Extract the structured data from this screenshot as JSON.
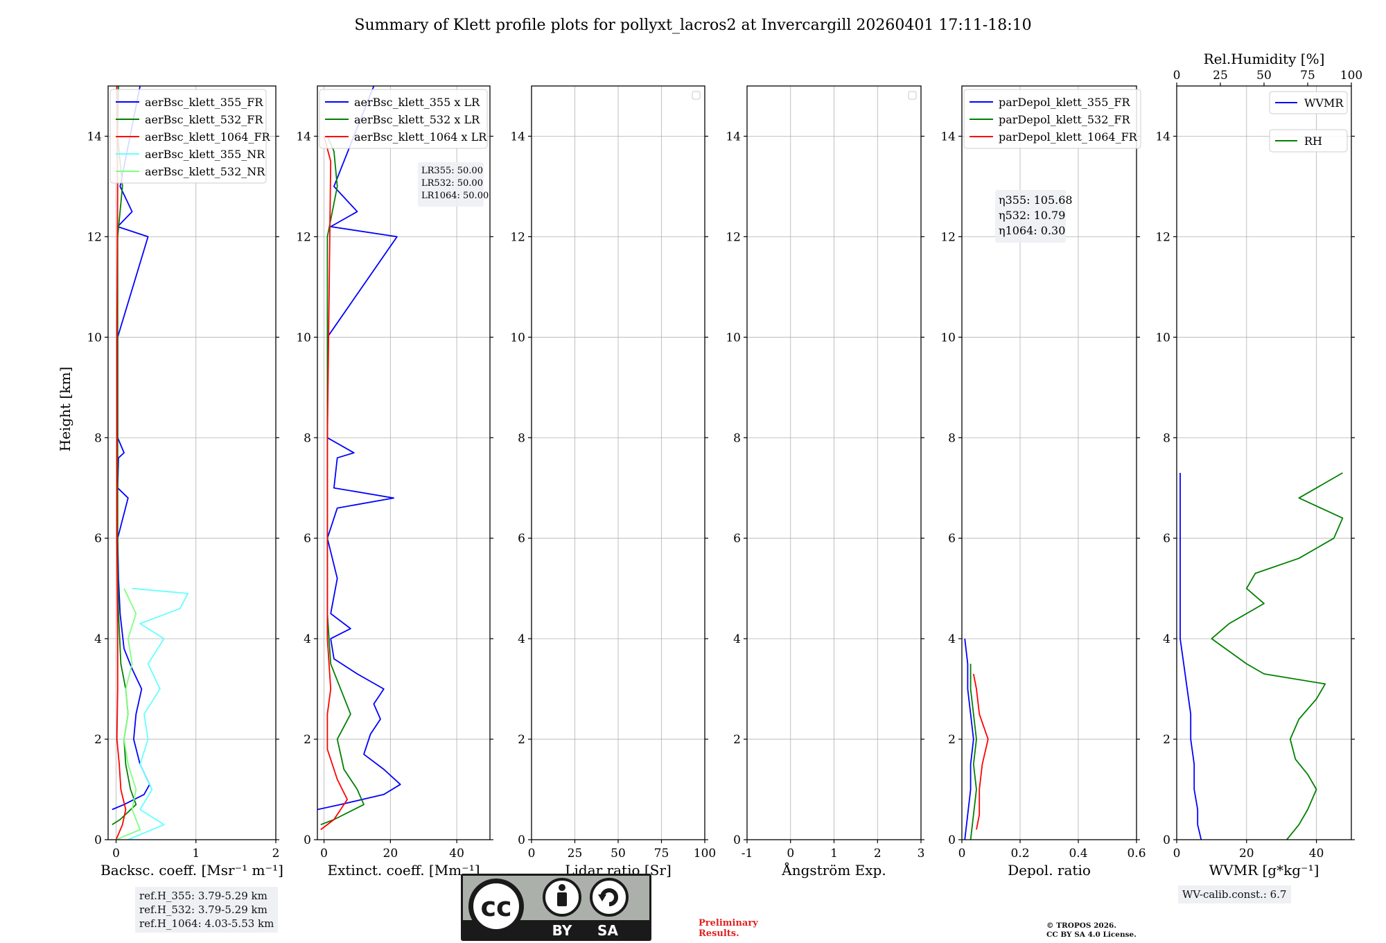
{
  "title": "Summary of Klett profile plots for pollyxt_lacros2 at Invercargill 20260401 17:11-18:10",
  "ylabel": "Height [km]",
  "chart_data": [
    {
      "id": "backscatter",
      "type": "line",
      "xlabel": "Backsc. coeff. [Msr⁻¹ m⁻¹]",
      "xlim": [
        -0.1,
        2.0
      ],
      "ylim": [
        0,
        15
      ],
      "xticks": [
        0,
        1,
        2
      ],
      "yticks": [
        0,
        2,
        4,
        6,
        8,
        10,
        12,
        14
      ],
      "legend": "top-right",
      "series": [
        {
          "name": "aerBsc_klett_355_FR",
          "color": "#0000ff",
          "points": [
            [
              -0.05,
              0.6
            ],
            [
              0.1,
              0.7
            ],
            [
              0.35,
              0.9
            ],
            [
              0.42,
              1.1
            ],
            [
              0.3,
              1.5
            ],
            [
              0.22,
              2.0
            ],
            [
              0.25,
              2.5
            ],
            [
              0.32,
              3.0
            ],
            [
              0.2,
              3.4
            ],
            [
              0.1,
              3.8
            ],
            [
              0.05,
              4.5
            ],
            [
              0.03,
              5.2
            ],
            [
              0.02,
              6.0
            ],
            [
              0.15,
              6.8
            ],
            [
              0.02,
              7.0
            ],
            [
              0.03,
              7.6
            ],
            [
              0.1,
              7.7
            ],
            [
              0.02,
              8.0
            ],
            [
              0.02,
              10.0
            ],
            [
              0.4,
              12.0
            ],
            [
              0.02,
              12.2
            ],
            [
              0.2,
              12.5
            ],
            [
              0.05,
              13.0
            ],
            [
              0.3,
              15.0
            ]
          ]
        },
        {
          "name": "aerBsc_klett_532_FR",
          "color": "#008000",
          "points": [
            [
              -0.05,
              0.3
            ],
            [
              0.05,
              0.4
            ],
            [
              0.25,
              0.7
            ],
            [
              0.18,
              1.0
            ],
            [
              0.12,
              1.5
            ],
            [
              0.1,
              2.0
            ],
            [
              0.15,
              2.5
            ],
            [
              0.12,
              3.0
            ],
            [
              0.06,
              3.5
            ],
            [
              0.03,
              4.5
            ],
            [
              0.02,
              5.5
            ],
            [
              0.02,
              8.0
            ],
            [
              0.02,
              12.0
            ],
            [
              0.08,
              13.0
            ],
            [
              0.02,
              14.0
            ],
            [
              0.03,
              15.0
            ]
          ]
        },
        {
          "name": "aerBsc_klett_1064_FR",
          "color": "#ff0000",
          "points": [
            [
              0.0,
              0.0
            ],
            [
              0.08,
              0.3
            ],
            [
              0.12,
              0.6
            ],
            [
              0.06,
              1.0
            ],
            [
              0.04,
              1.5
            ],
            [
              0.01,
              2.0
            ],
            [
              0.02,
              3.0
            ],
            [
              0.02,
              4.0
            ],
            [
              0.01,
              6.0
            ],
            [
              0.01,
              10.0
            ],
            [
              0.02,
              13.0
            ],
            [
              0.01,
              15.0
            ]
          ]
        },
        {
          "name": "aerBsc_klett_355_NR",
          "color": "#66ffff",
          "points": [
            [
              0.15,
              0.0
            ],
            [
              0.6,
              0.3
            ],
            [
              0.3,
              0.6
            ],
            [
              0.45,
              1.0
            ],
            [
              0.3,
              1.5
            ],
            [
              0.4,
              2.0
            ],
            [
              0.35,
              2.5
            ],
            [
              0.55,
              3.0
            ],
            [
              0.4,
              3.5
            ],
            [
              0.6,
              4.0
            ],
            [
              0.3,
              4.3
            ],
            [
              0.8,
              4.6
            ],
            [
              0.9,
              4.9
            ],
            [
              0.2,
              5.0
            ]
          ]
        },
        {
          "name": "aerBsc_klett_532_NR",
          "color": "#80ff80",
          "points": [
            [
              0.0,
              0.0
            ],
            [
              0.3,
              0.2
            ],
            [
              0.2,
              0.6
            ],
            [
              0.25,
              1.0
            ],
            [
              0.15,
              1.5
            ],
            [
              0.1,
              2.0
            ],
            [
              0.15,
              2.5
            ],
            [
              0.12,
              3.0
            ],
            [
              0.2,
              3.5
            ],
            [
              0.15,
              4.0
            ],
            [
              0.25,
              4.5
            ],
            [
              0.1,
              5.0
            ]
          ]
        }
      ]
    },
    {
      "id": "extinction",
      "type": "line",
      "xlabel": "Extinct. coeff. [Mm⁻¹]",
      "xlim": [
        -2,
        50
      ],
      "ylim": [
        0,
        15
      ],
      "xticks": [
        0,
        20,
        40
      ],
      "yticks": [
        0,
        2,
        4,
        6,
        8,
        10,
        12,
        14
      ],
      "legend": "top-right",
      "annotation": [
        "LR355: 50.00",
        "LR532: 50.00",
        "LR1064: 50.00"
      ],
      "series": [
        {
          "name": "aerBsc_klett_355 x LR",
          "color": "#0000ff",
          "points": [
            [
              -2,
              0.6
            ],
            [
              5,
              0.7
            ],
            [
              18,
              0.9
            ],
            [
              23,
              1.1
            ],
            [
              18,
              1.4
            ],
            [
              12,
              1.7
            ],
            [
              14,
              2.1
            ],
            [
              17,
              2.4
            ],
            [
              15,
              2.7
            ],
            [
              18,
              3.0
            ],
            [
              10,
              3.3
            ],
            [
              3,
              3.6
            ],
            [
              2,
              4.0
            ],
            [
              8,
              4.2
            ],
            [
              2,
              4.5
            ],
            [
              4,
              5.2
            ],
            [
              1,
              6.0
            ],
            [
              4,
              6.6
            ],
            [
              21,
              6.8
            ],
            [
              3,
              7.0
            ],
            [
              4,
              7.6
            ],
            [
              9,
              7.7
            ],
            [
              1,
              8.0
            ],
            [
              1,
              10.0
            ],
            [
              22,
              12.0
            ],
            [
              2,
              12.2
            ],
            [
              10,
              12.5
            ],
            [
              3,
              13.0
            ],
            [
              15,
              15.0
            ]
          ]
        },
        {
          "name": "aerBsc_klett_532 x LR",
          "color": "#008000",
          "points": [
            [
              -1,
              0.3
            ],
            [
              3,
              0.4
            ],
            [
              12,
              0.7
            ],
            [
              10,
              1.0
            ],
            [
              6,
              1.4
            ],
            [
              4,
              2.0
            ],
            [
              8,
              2.5
            ],
            [
              5,
              3.0
            ],
            [
              2,
              3.5
            ],
            [
              1,
              4.5
            ],
            [
              1,
              6.0
            ],
            [
              1,
              8.0
            ],
            [
              1,
              12.0
            ],
            [
              4,
              13.0
            ],
            [
              3,
              13.7
            ],
            [
              1,
              14.0
            ]
          ]
        },
        {
          "name": "aerBsc_klett_1064 x LR",
          "color": "#ff0000",
          "points": [
            [
              -1,
              0.2
            ],
            [
              3,
              0.4
            ],
            [
              7,
              0.8
            ],
            [
              4,
              1.2
            ],
            [
              1,
              1.8
            ],
            [
              1,
              2.5
            ],
            [
              2,
              3.0
            ],
            [
              1,
              4.0
            ],
            [
              1,
              8.0
            ],
            [
              2,
              13.5
            ],
            [
              0,
              14.0
            ]
          ]
        }
      ]
    },
    {
      "id": "lidar_ratio",
      "type": "line",
      "xlabel": "Lidar ratio [Sr]",
      "xlim": [
        0,
        100
      ],
      "ylim": [
        0,
        15
      ],
      "xticks": [
        0,
        25,
        50,
        75,
        100
      ],
      "yticks": [
        0,
        2,
        4,
        6,
        8,
        10,
        12,
        14
      ],
      "series": []
    },
    {
      "id": "angstrom",
      "type": "line",
      "xlabel": "Ångström Exp.",
      "xlim": [
        -1,
        3
      ],
      "ylim": [
        0,
        15
      ],
      "xticks": [
        -1,
        0,
        1,
        2,
        3
      ],
      "yticks": [
        0,
        2,
        4,
        6,
        8,
        10,
        12,
        14
      ],
      "series": []
    },
    {
      "id": "depol",
      "type": "line",
      "xlabel": "Depol. ratio",
      "xlim": [
        0,
        0.6
      ],
      "ylim": [
        0,
        15
      ],
      "xticks": [
        0.0,
        0.2,
        0.4,
        0.6
      ],
      "yticks": [
        0,
        2,
        4,
        6,
        8,
        10,
        12,
        14
      ],
      "legend": "top-right",
      "annotation": [
        "η355: 105.68",
        "η532: 10.79",
        "η1064: 0.30"
      ],
      "series": [
        {
          "name": "parDepol_klett_355_FR",
          "color": "#0000ff",
          "points": [
            [
              0.01,
              0.0
            ],
            [
              0.02,
              0.5
            ],
            [
              0.03,
              1.0
            ],
            [
              0.03,
              1.5
            ],
            [
              0.04,
              2.0
            ],
            [
              0.03,
              2.5
            ],
            [
              0.02,
              3.0
            ],
            [
              0.02,
              3.5
            ],
            [
              0.01,
              4.0
            ]
          ]
        },
        {
          "name": "parDepol_klett_532_FR",
          "color": "#008000",
          "points": [
            [
              0.03,
              0.0
            ],
            [
              0.04,
              0.5
            ],
            [
              0.05,
              1.0
            ],
            [
              0.04,
              1.5
            ],
            [
              0.05,
              2.0
            ],
            [
              0.04,
              2.5
            ],
            [
              0.03,
              3.0
            ],
            [
              0.03,
              3.5
            ]
          ]
        },
        {
          "name": "parDepol_klett_1064_FR",
          "color": "#ff0000",
          "points": [
            [
              0.05,
              0.2
            ],
            [
              0.06,
              0.5
            ],
            [
              0.06,
              1.0
            ],
            [
              0.07,
              1.5
            ],
            [
              0.09,
              2.0
            ],
            [
              0.06,
              2.5
            ],
            [
              0.05,
              3.0
            ],
            [
              0.04,
              3.3
            ]
          ]
        }
      ]
    },
    {
      "id": "wvmr",
      "type": "line",
      "xlabel": "WVMR [g*kg⁻¹]",
      "x2label": "Rel.Humidity [%]",
      "xlim": [
        0,
        50
      ],
      "x2lim": [
        0,
        100
      ],
      "ylim": [
        0,
        15
      ],
      "xticks": [
        0,
        20,
        40
      ],
      "x2ticks": [
        0,
        25,
        50,
        75,
        100
      ],
      "yticks": [
        0,
        2,
        4,
        6,
        8,
        10,
        12,
        14
      ],
      "legend": "top-right",
      "series": [
        {
          "name": "WVMR",
          "axis": "x",
          "color": "#0000ff",
          "points": [
            [
              7,
              0.0
            ],
            [
              6,
              0.3
            ],
            [
              6,
              0.6
            ],
            [
              5,
              1.0
            ],
            [
              5,
              1.5
            ],
            [
              4,
              2.0
            ],
            [
              4,
              2.5
            ],
            [
              3,
              3.0
            ],
            [
              2,
              3.5
            ],
            [
              1,
              4.0
            ],
            [
              1,
              4.5
            ],
            [
              1,
              5.0
            ],
            [
              1,
              5.5
            ],
            [
              1,
              6.0
            ],
            [
              1,
              6.5
            ],
            [
              1,
              7.0
            ],
            [
              1,
              7.3
            ]
          ]
        },
        {
          "name": "RH",
          "axis": "x2",
          "color": "#008000",
          "points": [
            [
              63,
              0.0
            ],
            [
              70,
              0.3
            ],
            [
              75,
              0.6
            ],
            [
              80,
              1.0
            ],
            [
              75,
              1.3
            ],
            [
              68,
              1.6
            ],
            [
              65,
              2.0
            ],
            [
              70,
              2.4
            ],
            [
              80,
              2.8
            ],
            [
              85,
              3.1
            ],
            [
              50,
              3.3
            ],
            [
              40,
              3.5
            ],
            [
              20,
              4.0
            ],
            [
              30,
              4.3
            ],
            [
              50,
              4.7
            ],
            [
              40,
              5.0
            ],
            [
              45,
              5.3
            ],
            [
              70,
              5.6
            ],
            [
              90,
              6.0
            ],
            [
              95,
              6.4
            ],
            [
              70,
              6.8
            ],
            [
              95,
              7.3
            ]
          ]
        }
      ]
    }
  ],
  "notes": {
    "ref_h_355": "ref.H_355: 3.79-5.29 km",
    "ref_h_532": "ref.H_532: 3.79-5.29 km",
    "ref_h_1064": "ref.H_1064: 4.03-5.53 km",
    "wv_calib": "WV-calib.const.: 6.7",
    "preliminary_1": "Preliminary",
    "preliminary_2": "Results.",
    "copyright_1": "© TROPOS 2026.",
    "copyright_2": "CC BY SA 4.0 License."
  },
  "license_badge": {
    "by": "BY",
    "sa": "SA",
    "cc": "cc"
  }
}
